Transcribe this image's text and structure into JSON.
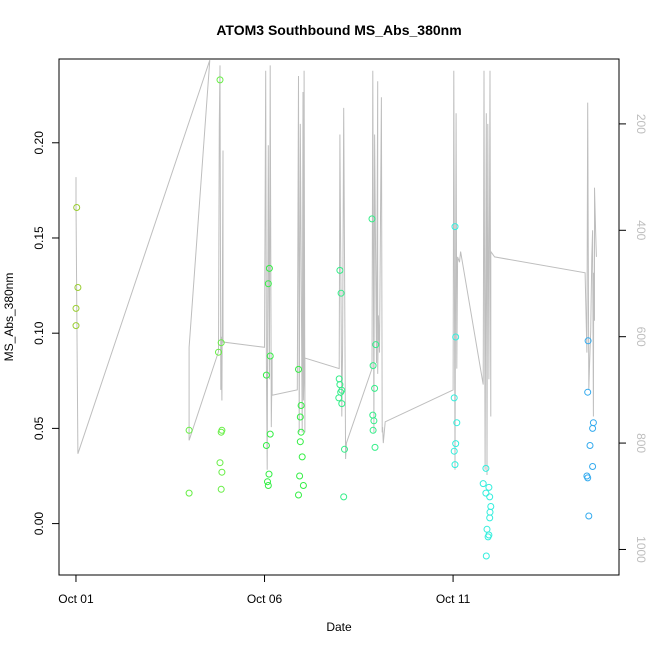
{
  "chart_data": {
    "type": "scatter",
    "title": "ATOM3 Southbound MS_Abs_380nm",
    "xlabel": "Date",
    "ylabel": "MS_Abs_380nm",
    "x_ticks": [
      "Oct 01",
      "Oct 06",
      "Oct 11"
    ],
    "x_tick_values": [
      0,
      5,
      10
    ],
    "xlim": [
      -0.45,
      14.4
    ],
    "ylim": [
      -0.027,
      0.244
    ],
    "y_ticks": [
      0.0,
      0.05,
      0.1,
      0.15,
      0.2
    ],
    "y_tick_labels": [
      "0.00",
      "0.05",
      "0.10",
      "0.15",
      "0.20"
    ],
    "right_axis": {
      "ticks": [
        200,
        400,
        600,
        800,
        1000
      ],
      "tick_labels": [
        "200",
        "400",
        "600",
        "800",
        "1000"
      ],
      "lim": [
        1048,
        78
      ],
      "color": "#bebebe"
    },
    "grid": false,
    "legend": "none",
    "series": [
      {
        "color": "#9ACD32",
        "points": [
          [
            0.02,
            0.166
          ],
          [
            0.05,
            0.124
          ],
          [
            0.0,
            0.113
          ],
          [
            0.0,
            0.104
          ]
        ]
      },
      {
        "color": "#66EE44",
        "points": [
          [
            3.0,
            0.049
          ],
          [
            3.0,
            0.016
          ],
          [
            3.82,
            0.233
          ],
          [
            3.78,
            0.09
          ],
          [
            3.85,
            0.095
          ],
          [
            3.87,
            0.049
          ],
          [
            3.85,
            0.048
          ],
          [
            3.82,
            0.032
          ],
          [
            3.87,
            0.027
          ],
          [
            3.85,
            0.018
          ]
        ]
      },
      {
        "color": "#33EE44",
        "points": [
          [
            5.13,
            0.134
          ],
          [
            5.1,
            0.126
          ],
          [
            5.15,
            0.088
          ],
          [
            5.05,
            0.078
          ],
          [
            5.15,
            0.047
          ],
          [
            5.05,
            0.041
          ],
          [
            5.12,
            0.026
          ],
          [
            5.08,
            0.022
          ],
          [
            5.1,
            0.02
          ],
          [
            5.9,
            0.081
          ],
          [
            5.97,
            0.062
          ],
          [
            5.95,
            0.056
          ],
          [
            5.97,
            0.048
          ],
          [
            5.95,
            0.043
          ],
          [
            6.0,
            0.035
          ],
          [
            5.93,
            0.025
          ],
          [
            6.03,
            0.02
          ],
          [
            5.9,
            0.015
          ]
        ]
      },
      {
        "color": "#33EE88",
        "points": [
          [
            7.0,
            0.133
          ],
          [
            7.03,
            0.121
          ],
          [
            6.98,
            0.076
          ],
          [
            7.0,
            0.073
          ],
          [
            7.05,
            0.07
          ],
          [
            7.02,
            0.069
          ],
          [
            6.97,
            0.066
          ],
          [
            7.05,
            0.063
          ],
          [
            7.12,
            0.039
          ],
          [
            7.1,
            0.014
          ],
          [
            7.85,
            0.16
          ],
          [
            7.95,
            0.094
          ],
          [
            7.88,
            0.083
          ],
          [
            7.92,
            0.071
          ],
          [
            7.87,
            0.057
          ],
          [
            7.9,
            0.054
          ],
          [
            7.88,
            0.049
          ],
          [
            7.93,
            0.04
          ]
        ]
      },
      {
        "color": "#33EEDD",
        "points": [
          [
            10.05,
            0.156
          ],
          [
            10.07,
            0.098
          ],
          [
            10.03,
            0.066
          ],
          [
            10.1,
            0.053
          ],
          [
            10.07,
            0.042
          ],
          [
            10.03,
            0.038
          ],
          [
            10.05,
            0.031
          ],
          [
            10.87,
            0.029
          ],
          [
            10.8,
            0.021
          ],
          [
            10.87,
            0.016
          ],
          [
            10.95,
            0.019
          ],
          [
            10.97,
            0.014
          ],
          [
            11.0,
            0.009
          ],
          [
            10.98,
            0.006
          ],
          [
            10.97,
            0.003
          ],
          [
            10.9,
            -0.003
          ],
          [
            10.95,
            -0.006
          ],
          [
            10.93,
            -0.007
          ],
          [
            10.88,
            -0.017
          ]
        ]
      },
      {
        "color": "#33AAEE",
        "points": [
          [
            13.58,
            0.096
          ],
          [
            13.57,
            0.069
          ],
          [
            13.72,
            0.053
          ],
          [
            13.7,
            0.05
          ],
          [
            13.63,
            0.041
          ],
          [
            13.7,
            0.03
          ],
          [
            13.55,
            0.025
          ],
          [
            13.57,
            0.024
          ],
          [
            13.6,
            0.004
          ]
        ]
      }
    ],
    "line_series": {
      "color": "#bebebe",
      "axis": "right",
      "points": [
        [
          0.0,
          300
        ],
        [
          0.0,
          350
        ],
        [
          0.05,
          820
        ],
        [
          3.55,
          80
        ],
        [
          3.55,
          80
        ],
        [
          3.0,
          620
        ],
        [
          3.0,
          795
        ],
        [
          3.78,
          628
        ],
        [
          3.8,
          200
        ],
        [
          3.82,
          90
        ],
        [
          3.84,
          700
        ],
        [
          3.85,
          600
        ],
        [
          3.87,
          720
        ],
        [
          3.9,
          250
        ],
        [
          3.9,
          610
        ],
        [
          5.0,
          620
        ],
        [
          5.03,
          100
        ],
        [
          5.05,
          650
        ],
        [
          5.07,
          850
        ],
        [
          5.1,
          240
        ],
        [
          5.13,
          680
        ],
        [
          5.15,
          90
        ],
        [
          5.18,
          770
        ],
        [
          5.2,
          640
        ],
        [
          5.2,
          710
        ],
        [
          5.87,
          700
        ],
        [
          5.9,
          110
        ],
        [
          5.92,
          780
        ],
        [
          5.95,
          200
        ],
        [
          6.0,
          780
        ],
        [
          6.02,
          140
        ],
        [
          6.03,
          720
        ],
        [
          6.05,
          660
        ],
        [
          6.05,
          610
        ],
        [
          6.05,
          100
        ],
        [
          6.07,
          780
        ],
        [
          6.07,
          640
        ],
        [
          6.98,
          660
        ],
        [
          7.0,
          220
        ],
        [
          7.05,
          750
        ],
        [
          7.07,
          620
        ],
        [
          7.1,
          170
        ],
        [
          7.15,
          830
        ],
        [
          7.17,
          800
        ],
        [
          7.85,
          660
        ],
        [
          7.87,
          100
        ],
        [
          7.9,
          780
        ],
        [
          7.92,
          220
        ],
        [
          7.97,
          650
        ],
        [
          8.0,
          120
        ],
        [
          8.0,
          670
        ],
        [
          8.02,
          560
        ],
        [
          8.05,
          630
        ],
        [
          8.1,
          150
        ],
        [
          8.12,
          780
        ],
        [
          8.13,
          770
        ],
        [
          8.15,
          800
        ],
        [
          8.2,
          760
        ],
        [
          10.0,
          700
        ],
        [
          10.02,
          100
        ],
        [
          10.05,
          850
        ],
        [
          10.08,
          180
        ],
        [
          10.1,
          660
        ],
        [
          10.12,
          450
        ],
        [
          10.17,
          460
        ],
        [
          10.2,
          440
        ],
        [
          10.8,
          690
        ],
        [
          10.82,
          100
        ],
        [
          10.85,
          850
        ],
        [
          10.88,
          180
        ],
        [
          10.9,
          860
        ],
        [
          10.92,
          200
        ],
        [
          10.95,
          680
        ],
        [
          10.98,
          100
        ],
        [
          11.0,
          750
        ],
        [
          11.0,
          440
        ],
        [
          11.1,
          450
        ],
        [
          13.5,
          480
        ],
        [
          13.55,
          630
        ],
        [
          13.57,
          160
        ],
        [
          13.6,
          700
        ],
        [
          13.62,
          650
        ],
        [
          13.65,
          590
        ],
        [
          13.68,
          450
        ],
        [
          13.7,
          400
        ],
        [
          13.72,
          750
        ],
        [
          13.73,
          480
        ],
        [
          13.75,
          570
        ],
        [
          13.75,
          320
        ],
        [
          13.78,
          400
        ],
        [
          13.8,
          450
        ]
      ]
    }
  }
}
